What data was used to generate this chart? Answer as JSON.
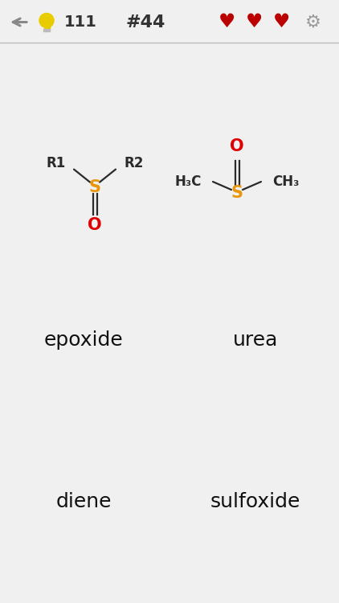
{
  "bg_color": "#f0f0f0",
  "header_bg": "#ffffff",
  "header_text_color": "#333333",
  "arrow_color": "#888888",
  "heart_color": "#bb0000",
  "bulb_color": "#e8cc00",
  "number_text": "111",
  "puzzle_number": "#44",
  "sulfur_color": "#e8960a",
  "oxygen_color": "#dd0000",
  "carbon_color": "#2a2a2a",
  "grid_bg": "#aaaaaa",
  "grid_line_color": "#ffffff",
  "answers": [
    "epoxide",
    "urea",
    "diene",
    "sulfoxide"
  ],
  "grid_font_size": 18,
  "fig_width": 4.22,
  "fig_height": 7.5,
  "dpi": 100
}
